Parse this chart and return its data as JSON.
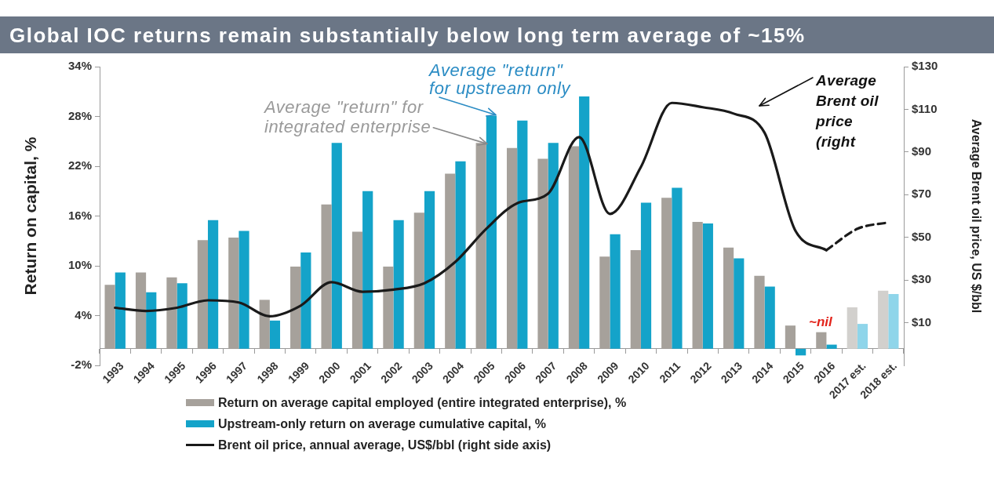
{
  "chart_data": {
    "type": "bar",
    "title": "Global IOC returns remain substantially below long term average of ~15%",
    "ylabel": "Return on capital, %",
    "y2label": "Average Brent oil price, US $/bbl",
    "categories": [
      "1993",
      "1994",
      "1995",
      "1996",
      "1997",
      "1998",
      "1999",
      "2000",
      "2001",
      "2002",
      "2003",
      "2004",
      "2005",
      "2006",
      "2007",
      "2008",
      "2009",
      "2010",
      "2011",
      "2012",
      "2013",
      "2014",
      "2015",
      "2016",
      "2017 est.",
      "2018 est."
    ],
    "series": [
      {
        "name": "Return on average capital employed (entire integrated enterprise), %",
        "color": "#a6a19b",
        "colors": [
          "#a6a19b",
          "#a6a19b",
          "#a6a19b",
          "#a6a19b",
          "#a6a19b",
          "#a6a19b",
          "#a6a19b",
          "#a6a19b",
          "#a6a19b",
          "#a6a19b",
          "#a6a19b",
          "#a6a19b",
          "#a6a19b",
          "#a6a19b",
          "#a6a19b",
          "#a6a19b",
          "#a6a19b",
          "#a6a19b",
          "#a6a19b",
          "#a6a19b",
          "#a6a19b",
          "#a6a19b",
          "#a6a19b",
          "#a6a19b",
          "#d2d0cd",
          "#d2d0cd"
        ],
        "values": [
          7.7,
          9.2,
          8.6,
          13.1,
          13.4,
          5.9,
          9.9,
          17.4,
          14.1,
          9.9,
          16.4,
          21.1,
          24.8,
          24.2,
          22.9,
          24.4,
          11.1,
          11.9,
          18.2,
          15.3,
          12.2,
          8.8,
          2.8,
          2.0,
          5.0,
          7.0
        ]
      },
      {
        "name": "Upstream-only return on average cumulative capital, %",
        "color": "#14a3c9",
        "colors": [
          "#14a3c9",
          "#14a3c9",
          "#14a3c9",
          "#14a3c9",
          "#14a3c9",
          "#14a3c9",
          "#14a3c9",
          "#14a3c9",
          "#14a3c9",
          "#14a3c9",
          "#14a3c9",
          "#14a3c9",
          "#14a3c9",
          "#14a3c9",
          "#14a3c9",
          "#14a3c9",
          "#14a3c9",
          "#14a3c9",
          "#14a3c9",
          "#14a3c9",
          "#14a3c9",
          "#14a3c9",
          "#14a3c9",
          "#14a3c9",
          "#8fd5ea",
          "#8fd5ea"
        ],
        "values": [
          9.2,
          6.8,
          7.9,
          15.5,
          14.2,
          3.4,
          11.6,
          24.8,
          19.0,
          15.5,
          19.0,
          22.6,
          28.1,
          27.5,
          24.8,
          30.4,
          13.8,
          17.6,
          19.4,
          15.1,
          10.9,
          7.5,
          -0.8,
          0.5,
          3.0,
          6.6
        ]
      },
      {
        "name": "Brent oil price, annual average, US$/bbl (right side axis)",
        "type": "line",
        "axis": "y2",
        "color": "#1a1a1a",
        "line_style": "solid",
        "values": [
          17,
          15.5,
          17,
          20.5,
          19.5,
          13,
          18,
          29,
          24.5,
          25.5,
          28.5,
          38.5,
          54,
          66,
          70.5,
          97,
          61,
          83,
          113,
          111,
          108,
          99,
          53,
          44,
          null,
          null
        ]
      },
      {
        "type": "line",
        "axis": "y2",
        "color": "#1a1a1a",
        "line_style": "dashed",
        "values": [
          null,
          null,
          null,
          null,
          null,
          null,
          null,
          null,
          null,
          null,
          null,
          null,
          null,
          null,
          null,
          null,
          null,
          null,
          null,
          null,
          null,
          null,
          null,
          44,
          54,
          57
        ]
      }
    ],
    "ylim": [
      -2,
      34
    ],
    "yticks": [
      {
        "value": -2,
        "label": "-2%"
      },
      {
        "value": 4,
        "label": "4%"
      },
      {
        "value": 10,
        "label": "10%"
      },
      {
        "value": 16,
        "label": "16%"
      },
      {
        "value": 22,
        "label": "22%"
      },
      {
        "value": 28,
        "label": "28%"
      },
      {
        "value": 34,
        "label": "34%"
      }
    ],
    "y2lim": [
      -10,
      130
    ],
    "y2ticks": [
      {
        "value": 10,
        "label": "$10"
      },
      {
        "value": 30,
        "label": "$30"
      },
      {
        "value": 50,
        "label": "$50"
      },
      {
        "value": 70,
        "label": "$70"
      },
      {
        "value": 90,
        "label": "$90"
      },
      {
        "value": 110,
        "label": "$110"
      },
      {
        "value": 130,
        "label": "$130"
      }
    ],
    "grid": false,
    "legend": "bottom",
    "marker": "none",
    "annotations": [
      {
        "text": "Average \"return\" for upstream only",
        "x": "2005",
        "y": 28.1
      },
      {
        "text": "Average \"return\" for integrated enterprise",
        "x": "2005",
        "y": 24.8
      },
      "Average Brent oil price (right",
      "~nil"
    ]
  }
}
